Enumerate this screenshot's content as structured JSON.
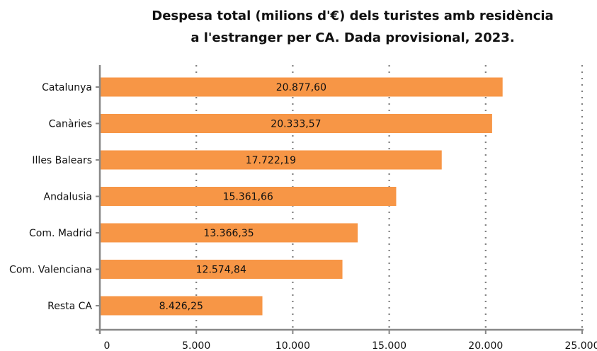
{
  "chart_data": {
    "type": "bar",
    "orientation": "horizontal",
    "title_lines": [
      "Despesa total (milions d'€) dels turistes amb residència",
      "a l'estranger per CA. Dada provisional, 2023."
    ],
    "categories": [
      "Catalunya",
      "Canàries",
      "Illes Balears",
      "Andalusia",
      "Com. Madrid",
      "Com. Valenciana",
      "Resta CA"
    ],
    "values": [
      20877.6,
      20333.57,
      17722.19,
      15361.66,
      13366.35,
      12574.84,
      8426.25
    ],
    "data_labels": [
      "20.877,60",
      "20.333,57",
      "17.722,19",
      "15.361,66",
      "13.366,35",
      "12.574,84",
      "8.426,25"
    ],
    "xlim": [
      0,
      25000
    ],
    "x_ticks": [
      0,
      5000,
      10000,
      15000,
      20000,
      25000
    ],
    "x_tick_labels": [
      "0",
      "5.000",
      "10.000",
      "15.000",
      "20.000",
      "25.000"
    ],
    "grid": "vertical-dotted",
    "bar_color": "#f79646",
    "axis_color": "#888888",
    "grid_color": "#808080"
  }
}
